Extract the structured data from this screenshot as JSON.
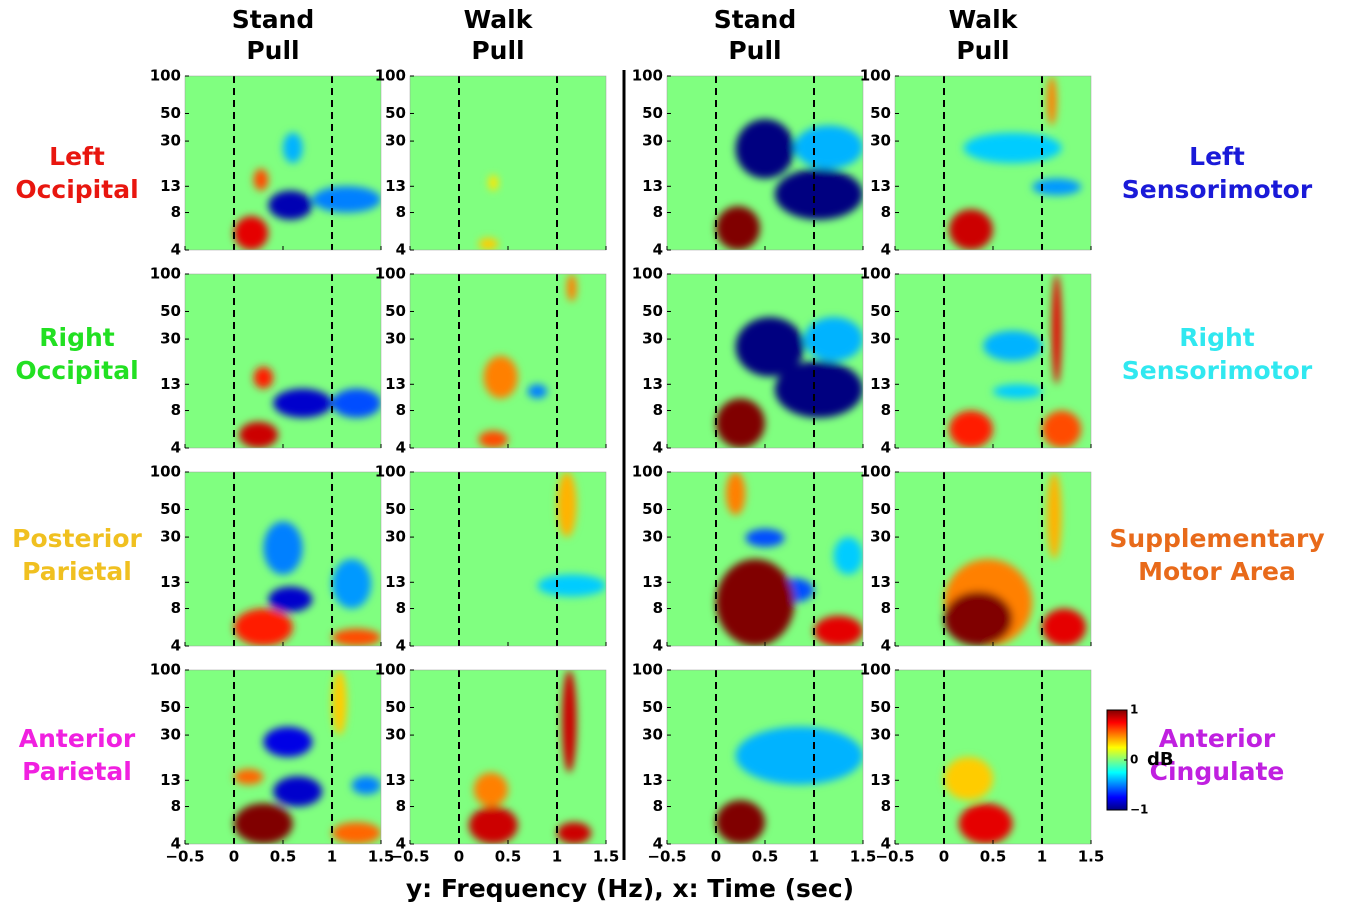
{
  "chart_data": {
    "type": "heatmap-grid",
    "column_titles": [
      [
        "Stand",
        "Pull"
      ],
      [
        "Walk",
        "Pull"
      ],
      [
        "Stand",
        "Pull"
      ],
      [
        "Walk",
        "Pull"
      ]
    ],
    "row_labels_left": [
      {
        "lines": [
          "Left",
          "Occipital"
        ],
        "color": "#e8160f"
      },
      {
        "lines": [
          "Right",
          "Occipital"
        ],
        "color": "#22e022"
      },
      {
        "lines": [
          "Posterior",
          "Parietal"
        ],
        "color": "#f0c020"
      },
      {
        "lines": [
          "Anterior",
          "Parietal"
        ],
        "color": "#f020e0"
      }
    ],
    "row_labels_right": [
      {
        "lines": [
          "Left",
          "Sensorimotor"
        ],
        "color": "#1a1ad8"
      },
      {
        "lines": [
          "Right",
          "Sensorimotor"
        ],
        "color": "#30e8f0"
      },
      {
        "lines": [
          "Supplementary",
          "Motor Area"
        ],
        "color": "#e86a1a"
      },
      {
        "lines": [
          "Anterior",
          "Cingulate"
        ],
        "color": "#c020e0"
      }
    ],
    "xlabel": "y: Frequency (Hz), x: Time (sec)",
    "xlim": [
      -0.5,
      1.5
    ],
    "xticks": [
      {
        "value": -0.5,
        "label": "−0.5"
      },
      0,
      0.5,
      1,
      1.5
    ],
    "ylim": [
      4,
      100
    ],
    "yticks": [
      4,
      8,
      13,
      30,
      50,
      100
    ],
    "y_scale": "log",
    "event_lines": [
      0,
      1
    ],
    "colorbar": {
      "lim": [
        -1,
        1
      ],
      "ticks": [
        {
          "value": 1,
          "label": "1"
        },
        {
          "value": 0,
          "label": "0"
        },
        {
          "value": -1,
          "label": "−1"
        }
      ],
      "label": "dB"
    },
    "panels": [
      [
        [
          {
            "t": [
              0.2,
              0.35
            ],
            "f": [
              12,
              18
            ],
            "value": 0.6
          },
          {
            "t": [
              0,
              0.35
            ],
            "f": [
              4,
              7.5
            ],
            "value": 0.8
          },
          {
            "t": [
              0.35,
              0.8
            ],
            "f": [
              7,
              12
            ],
            "value": -0.9
          },
          {
            "t": [
              0.8,
              1.5
            ],
            "f": [
              8,
              13
            ],
            "value": -0.5
          },
          {
            "t": [
              0.5,
              0.7
            ],
            "f": [
              20,
              35
            ],
            "value": -0.4
          }
        ],
        [
          {
            "t": [
              0.2,
              0.4
            ],
            "f": [
              4,
              5
            ],
            "value": 0.35
          },
          {
            "t": [
              0.3,
              0.4
            ],
            "f": [
              12,
              16
            ],
            "value": 0.3
          }
        ],
        [
          {
            "t": [
              0.2,
              0.8
            ],
            "f": [
              15,
              45
            ],
            "value": -1
          },
          {
            "t": [
              0.6,
              1.5
            ],
            "f": [
              7,
              18
            ],
            "value": -1
          },
          {
            "t": [
              0.8,
              1.5
            ],
            "f": [
              18,
              40
            ],
            "value": -0.4
          },
          {
            "t": [
              0,
              0.45
            ],
            "f": [
              4,
              9
            ],
            "value": 1
          }
        ],
        [
          {
            "t": [
              0.2,
              1.2
            ],
            "f": [
              20,
              35
            ],
            "value": -0.35
          },
          {
            "t": [
              0.9,
              1.4
            ],
            "f": [
              11,
              15
            ],
            "value": -0.45
          },
          {
            "t": [
              1.05,
              1.15
            ],
            "f": [
              40,
              100
            ],
            "value": 0.5
          },
          {
            "t": [
              0.05,
              0.5
            ],
            "f": [
              4,
              8.5
            ],
            "value": 0.85
          }
        ]
      ],
      [
        [
          {
            "t": [
              0.2,
              0.4
            ],
            "f": [
              12,
              18
            ],
            "value": 0.7
          },
          {
            "t": [
              0.05,
              0.45
            ],
            "f": [
              4,
              6.5
            ],
            "value": 0.85
          },
          {
            "t": [
              0.4,
              1.0
            ],
            "f": [
              7,
              12
            ],
            "value": -0.85
          },
          {
            "t": [
              1.0,
              1.5
            ],
            "f": [
              7,
              12
            ],
            "value": -0.6
          }
        ],
        [
          {
            "t": [
              0.25,
              0.6
            ],
            "f": [
              10,
              22
            ],
            "value": 0.5
          },
          {
            "t": [
              0.2,
              0.5
            ],
            "f": [
              4,
              5.5
            ],
            "value": 0.6
          },
          {
            "t": [
              0.7,
              0.9
            ],
            "f": [
              10,
              13
            ],
            "value": -0.5
          },
          {
            "t": [
              1.1,
              1.2
            ],
            "f": [
              60,
              100
            ],
            "value": 0.5
          }
        ],
        [
          {
            "t": [
              0.2,
              0.9
            ],
            "f": [
              15,
              45
            ],
            "value": -1
          },
          {
            "t": [
              0.6,
              1.5
            ],
            "f": [
              7,
              20
            ],
            "value": -1
          },
          {
            "t": [
              0.9,
              1.5
            ],
            "f": [
              20,
              45
            ],
            "value": -0.4
          },
          {
            "t": [
              0,
              0.5
            ],
            "f": [
              4,
              10
            ],
            "value": 1
          }
        ],
        [
          {
            "t": [
              0.4,
              1.0
            ],
            "f": [
              20,
              35
            ],
            "value": -0.4
          },
          {
            "t": [
              0.5,
              1.0
            ],
            "f": [
              10,
              13
            ],
            "value": -0.35
          },
          {
            "t": [
              0.05,
              0.5
            ],
            "f": [
              4,
              8
            ],
            "value": 0.7
          },
          {
            "t": [
              1.1,
              1.2
            ],
            "f": [
              13,
              100
            ],
            "value": 0.8
          },
          {
            "t": [
              1.0,
              1.4
            ],
            "f": [
              4,
              8
            ],
            "value": 0.6
          }
        ]
      ],
      [
        [
          {
            "t": [
              0.3,
              0.7
            ],
            "f": [
              15,
              40
            ],
            "value": -0.5
          },
          {
            "t": [
              1.0,
              1.4
            ],
            "f": [
              8,
              20
            ],
            "value": -0.45
          },
          {
            "t": [
              0,
              0.6
            ],
            "f": [
              4,
              8
            ],
            "value": 0.7
          },
          {
            "t": [
              1.0,
              1.5
            ],
            "f": [
              4,
              5.5
            ],
            "value": 0.6
          },
          {
            "t": [
              0.35,
              0.8
            ],
            "f": [
              7.5,
              12
            ],
            "value": -0.85
          }
        ],
        [
          {
            "t": [
              0.8,
              1.5
            ],
            "f": [
              10,
              15
            ],
            "value": -0.35
          },
          {
            "t": [
              1.0,
              1.2
            ],
            "f": [
              30,
              100
            ],
            "value": 0.4
          }
        ],
        [
          {
            "t": [
              0.1,
              0.3
            ],
            "f": [
              45,
              100
            ],
            "value": 0.5
          },
          {
            "t": [
              0.3,
              0.7
            ],
            "f": [
              25,
              35
            ],
            "value": -0.6
          },
          {
            "t": [
              0.6,
              1.0
            ],
            "f": [
              9,
              14
            ],
            "value": -0.6
          },
          {
            "t": [
              1.2,
              1.5
            ],
            "f": [
              15,
              30
            ],
            "value": -0.35
          },
          {
            "t": [
              0,
              0.8
            ],
            "f": [
              4,
              20
            ],
            "value": 1
          },
          {
            "t": [
              1.0,
              1.5
            ],
            "f": [
              4,
              7
            ],
            "value": 0.8
          }
        ],
        [
          {
            "t": [
              0,
              0.9
            ],
            "f": [
              4,
              20
            ],
            "value": 0.5
          },
          {
            "t": [
              0,
              0.7
            ],
            "f": [
              4,
              11
            ],
            "value": 1
          },
          {
            "t": [
              1.0,
              1.45
            ],
            "f": [
              4,
              8
            ],
            "value": 0.8
          },
          {
            "t": [
              1.05,
              1.2
            ],
            "f": [
              20,
              100
            ],
            "value": 0.4
          }
        ]
      ],
      [
        [
          {
            "t": [
              0,
              0.3
            ],
            "f": [
              12,
              16
            ],
            "value": 0.55
          },
          {
            "t": [
              1.0,
              1.15
            ],
            "f": [
              30,
              100
            ],
            "value": 0.35
          },
          {
            "t": [
              0.3,
              0.8
            ],
            "f": [
              20,
              35
            ],
            "value": -0.8
          },
          {
            "t": [
              0.4,
              0.9
            ],
            "f": [
              8,
              14
            ],
            "value": -0.85
          },
          {
            "t": [
              1.2,
              1.5
            ],
            "f": [
              10,
              14
            ],
            "value": -0.5
          },
          {
            "t": [
              1,
              1.5
            ],
            "f": [
              4,
              6
            ],
            "value": 0.55
          },
          {
            "t": [
              0,
              0.6
            ],
            "f": [
              4,
              8.5
            ],
            "value": 1
          }
        ],
        [
          {
            "t": [
              0.15,
              0.5
            ],
            "f": [
              8,
              15
            ],
            "value": 0.5
          },
          {
            "t": [
              0.1,
              0.6
            ],
            "f": [
              4,
              8
            ],
            "value": 0.85
          },
          {
            "t": [
              1.05,
              1.2
            ],
            "f": [
              15,
              100
            ],
            "value": 0.85
          },
          {
            "t": [
              1.0,
              1.35
            ],
            "f": [
              4,
              6
            ],
            "value": 0.85
          }
        ],
        [
          {
            "t": [
              0.2,
              1.5
            ],
            "f": [
              12,
              35
            ],
            "value": -0.4
          },
          {
            "t": [
              0,
              0.5
            ],
            "f": [
              4,
              9
            ],
            "value": 1
          }
        ],
        [
          {
            "t": [
              0,
              0.5
            ],
            "f": [
              9,
              20
            ],
            "value": 0.35
          },
          {
            "t": [
              0.15,
              0.7
            ],
            "f": [
              4,
              8.5
            ],
            "value": 0.8
          }
        ]
      ]
    ]
  }
}
